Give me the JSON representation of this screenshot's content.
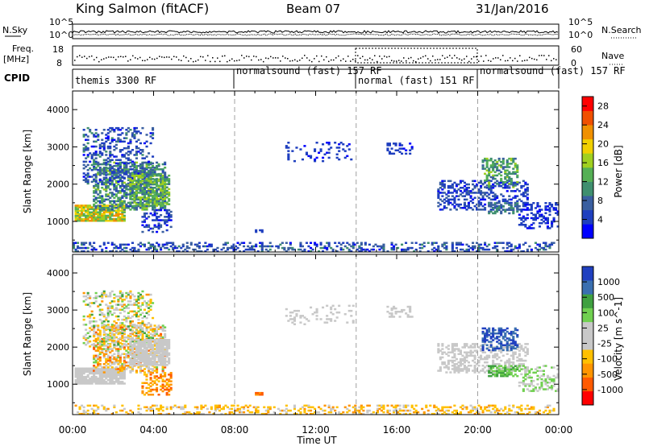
{
  "header": {
    "station": "King Salmon (fitACF)",
    "beam": "Beam 07",
    "date": "31/Jan/2016"
  },
  "status_panel": {
    "nsky_label": "N.Sky",
    "nsearch_label": "N.Search",
    "freq_label": "Freq.",
    "freq_unit": "[MHz]",
    "nave_label": "Nave",
    "cpid_label": "CPID",
    "noise_ticks_left": [
      "10^5",
      "10^0"
    ],
    "noise_ticks_right": [
      "10^5",
      "10^0"
    ],
    "freq_ticks_left": [
      "18",
      "8"
    ],
    "nave_ticks_right": [
      "60",
      "0"
    ],
    "cpid_segments": [
      {
        "label": "themis 3300 RF",
        "start_hour": 0,
        "end_hour": 8
      },
      {
        "label": "normalsound (fast) 157 RF",
        "start_hour": 8,
        "end_hour": 14
      },
      {
        "label": "normal (fast) 151 RF",
        "start_hour": 14,
        "end_hour": 20
      },
      {
        "label": "normalsound (fast) 157 RF",
        "start_hour": 20,
        "end_hour": 24
      }
    ]
  },
  "colors": {
    "power_scale": [
      "#0000ff",
      "#1f3fbf",
      "#3a5fa0",
      "#3f8f6f",
      "#55b055",
      "#a0d020",
      "#f0d000",
      "#f09000",
      "#f05000",
      "#ff0000"
    ],
    "velocity_scale": [
      "#ff0000",
      "#ff5a00",
      "#ff9500",
      "#ffc000",
      "#c8c8c8",
      "#c8c8c8",
      "#70d050",
      "#3fa040",
      "#3a6fb0",
      "#2040c0"
    ]
  },
  "chart_data": [
    {
      "type": "heatmap",
      "name": "power",
      "xlabel": "Time UT",
      "ylabel": "Slant Range [km]",
      "xlim": [
        0,
        24
      ],
      "ylim": [
        180,
        4500
      ],
      "xticks": [
        "00:00",
        "04:00",
        "08:00",
        "12:00",
        "16:00",
        "20:00",
        "00:00"
      ],
      "yticks": [
        1000,
        2000,
        3000,
        4000
      ],
      "colorbar": {
        "label": "Power [dB]",
        "ticks": [
          4,
          8,
          12,
          16,
          20,
          24,
          28
        ],
        "range": [
          0,
          30
        ]
      },
      "mode_change_hours": [
        8,
        14,
        20
      ],
      "regions": [
        {
          "t0": 0.1,
          "t1": 2.6,
          "r0": 1000,
          "r1": 1450,
          "v0": 12,
          "v1": 24,
          "density": 0.85
        },
        {
          "t0": 1.0,
          "t1": 4.6,
          "r0": 1300,
          "r1": 2600,
          "v0": 4,
          "v1": 16,
          "density": 0.55
        },
        {
          "t0": 0.5,
          "t1": 4.0,
          "r0": 2000,
          "r1": 3500,
          "v0": 2,
          "v1": 10,
          "density": 0.28
        },
        {
          "t0": 2.8,
          "t1": 4.7,
          "r0": 1400,
          "r1": 2300,
          "v0": 8,
          "v1": 18,
          "density": 0.6
        },
        {
          "t0": 3.4,
          "t1": 4.8,
          "r0": 700,
          "r1": 1300,
          "v0": 2,
          "v1": 8,
          "density": 0.35
        },
        {
          "t0": 0.0,
          "t1": 23.8,
          "r0": 180,
          "r1": 420,
          "v0": 2,
          "v1": 10,
          "density": 0.33
        },
        {
          "t0": 9.0,
          "t1": 9.3,
          "r0": 700,
          "r1": 780,
          "v0": 3,
          "v1": 6,
          "density": 0.8
        },
        {
          "t0": 10.5,
          "t1": 13.8,
          "r0": 2600,
          "r1": 3100,
          "v0": 2,
          "v1": 6,
          "density": 0.15
        },
        {
          "t0": 15.5,
          "t1": 16.8,
          "r0": 2800,
          "r1": 3100,
          "v0": 2,
          "v1": 6,
          "density": 0.3
        },
        {
          "t0": 18.0,
          "t1": 22.5,
          "r0": 1300,
          "r1": 2100,
          "v0": 2,
          "v1": 8,
          "density": 0.4
        },
        {
          "t0": 20.2,
          "t1": 22.0,
          "r0": 1900,
          "r1": 2700,
          "v0": 8,
          "v1": 16,
          "density": 0.45
        },
        {
          "t0": 20.5,
          "t1": 22.0,
          "r0": 1200,
          "r1": 1500,
          "v0": 6,
          "v1": 12,
          "density": 0.5
        },
        {
          "t0": 22.0,
          "t1": 24.0,
          "r0": 800,
          "r1": 1500,
          "v0": 2,
          "v1": 6,
          "density": 0.35
        }
      ]
    },
    {
      "type": "heatmap",
      "name": "velocity",
      "xlabel": "Time UT",
      "ylabel": "Slant Range [km]",
      "xlim": [
        0,
        24
      ],
      "ylim": [
        180,
        4500
      ],
      "xticks": [
        "00:00",
        "04:00",
        "08:00",
        "12:00",
        "16:00",
        "20:00",
        "00:00"
      ],
      "yticks": [
        1000,
        2000,
        3000,
        4000
      ],
      "colorbar": {
        "label": "Velocity [m s^-1]",
        "ticks": [
          1000,
          500,
          100,
          25,
          -25,
          -100,
          -500,
          -1000
        ]
      },
      "mode_change_hours": [
        8,
        14,
        20
      ],
      "regions": [
        {
          "t0": 0.1,
          "t1": 2.6,
          "r0": 1000,
          "r1": 1450,
          "v0": 4,
          "v1": 5,
          "density": 0.9
        },
        {
          "t0": 1.0,
          "t1": 4.6,
          "r0": 1300,
          "r1": 2600,
          "v0": 1,
          "v1": 6,
          "density": 0.5
        },
        {
          "t0": 0.5,
          "t1": 4.0,
          "r0": 2000,
          "r1": 3500,
          "v0": 2,
          "v1": 7,
          "density": 0.3
        },
        {
          "t0": 2.8,
          "t1": 4.7,
          "r0": 1500,
          "r1": 2200,
          "v0": 4,
          "v1": 5,
          "density": 0.75
        },
        {
          "t0": 3.4,
          "t1": 4.8,
          "r0": 700,
          "r1": 1300,
          "v0": 1,
          "v1": 3,
          "density": 0.4
        },
        {
          "t0": 0.0,
          "t1": 23.8,
          "r0": 180,
          "r1": 420,
          "v0": 2,
          "v1": 4,
          "density": 0.33
        },
        {
          "t0": 9.0,
          "t1": 9.3,
          "r0": 700,
          "r1": 780,
          "v0": 1,
          "v1": 2,
          "density": 0.8
        },
        {
          "t0": 10.5,
          "t1": 13.8,
          "r0": 2600,
          "r1": 3100,
          "v0": 4,
          "v1": 5,
          "density": 0.15
        },
        {
          "t0": 15.5,
          "t1": 16.8,
          "r0": 2800,
          "r1": 3100,
          "v0": 4,
          "v1": 5,
          "density": 0.3
        },
        {
          "t0": 18.0,
          "t1": 22.5,
          "r0": 1300,
          "r1": 2100,
          "v0": 4,
          "v1": 5,
          "density": 0.4
        },
        {
          "t0": 20.2,
          "t1": 22.0,
          "r0": 1900,
          "r1": 2500,
          "v0": 8,
          "v1": 9,
          "density": 0.5
        },
        {
          "t0": 20.5,
          "t1": 22.0,
          "r0": 1200,
          "r1": 1500,
          "v0": 6,
          "v1": 7,
          "density": 0.6
        },
        {
          "t0": 22.0,
          "t1": 24.0,
          "r0": 800,
          "r1": 1500,
          "v0": 5,
          "v1": 6,
          "density": 0.35
        }
      ]
    }
  ]
}
